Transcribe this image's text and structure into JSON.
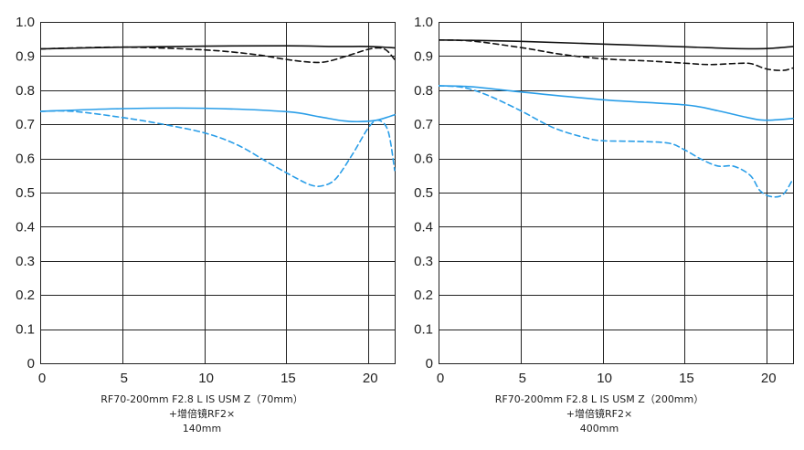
{
  "colors": {
    "black": "#111111",
    "blue": "#2a9ee8"
  },
  "chart_data": [
    {
      "type": "line",
      "caption": [
        "RF70-200mm F2.8 L IS USM Z（70mm）",
        "+增倍镜RF2×",
        "140mm"
      ],
      "xlim": [
        0,
        21.6
      ],
      "ylim": [
        0,
        1.0
      ],
      "xticks": [
        0,
        5,
        10,
        15,
        20
      ],
      "yticks": [
        0,
        0.1,
        0.2,
        0.3,
        0.4,
        0.5,
        0.6,
        0.7,
        0.8,
        0.9,
        1.0
      ],
      "ytick_labels": [
        "0",
        "0.1",
        "0.2",
        "0.3",
        "0.4",
        "0.5",
        "0.6",
        "0.7",
        "0.8",
        "0.9",
        "1.0"
      ],
      "grid": true,
      "series": [
        {
          "color": "black",
          "dash": false,
          "x": [
            0,
            5,
            10,
            15,
            18,
            20,
            21.6
          ],
          "y": [
            0.921,
            0.926,
            0.929,
            0.93,
            0.928,
            0.928,
            0.924
          ]
        },
        {
          "color": "black",
          "dash": true,
          "x": [
            0,
            5,
            10,
            13,
            15,
            16.5,
            17.5,
            19,
            20.2,
            21,
            21.6
          ],
          "y": [
            0.921,
            0.926,
            0.918,
            0.905,
            0.89,
            0.882,
            0.884,
            0.905,
            0.922,
            0.92,
            0.89
          ]
        },
        {
          "color": "blue",
          "dash": false,
          "x": [
            0,
            5,
            10,
            15,
            17,
            18.5,
            19.5,
            20.5,
            21.6
          ],
          "y": [
            0.738,
            0.746,
            0.747,
            0.737,
            0.722,
            0.71,
            0.708,
            0.712,
            0.728
          ]
        },
        {
          "color": "blue",
          "dash": true,
          "x": [
            0,
            2,
            5,
            7.5,
            10,
            12,
            14,
            15.5,
            16.5,
            17.2,
            18,
            19,
            20,
            20.6,
            21.2,
            21.6
          ],
          "y": [
            0.738,
            0.738,
            0.72,
            0.7,
            0.675,
            0.64,
            0.585,
            0.545,
            0.522,
            0.52,
            0.54,
            0.61,
            0.69,
            0.712,
            0.68,
            0.565
          ]
        }
      ]
    },
    {
      "type": "line",
      "caption": [
        "RF70-200mm F2.8 L IS USM Z（200mm）",
        "+增倍镜RF2×",
        "400mm"
      ],
      "xlim": [
        0,
        21.6
      ],
      "ylim": [
        0,
        1.0
      ],
      "xticks": [
        0,
        5,
        10,
        15,
        20
      ],
      "yticks": [
        0,
        0.1,
        0.2,
        0.3,
        0.4,
        0.5,
        0.6,
        0.7,
        0.8,
        0.9,
        1.0
      ],
      "ytick_labels": [
        "0",
        "0.1",
        "0.2",
        "0.3",
        "0.4",
        "0.5",
        "0.6",
        "0.7",
        "0.8",
        "0.9",
        "1.0"
      ],
      "grid": true,
      "series": [
        {
          "color": "black",
          "dash": false,
          "x": [
            0,
            2,
            5,
            10,
            15,
            18,
            20,
            21.6
          ],
          "y": [
            0.947,
            0.946,
            0.943,
            0.935,
            0.927,
            0.922,
            0.922,
            0.928
          ]
        },
        {
          "color": "black",
          "dash": true,
          "x": [
            0,
            2,
            5,
            7.5,
            10,
            13,
            15,
            16.5,
            18,
            19,
            20,
            21,
            21.6
          ],
          "y": [
            0.947,
            0.944,
            0.925,
            0.905,
            0.892,
            0.885,
            0.879,
            0.875,
            0.878,
            0.878,
            0.862,
            0.858,
            0.865
          ]
        },
        {
          "color": "blue",
          "dash": false,
          "x": [
            0,
            2,
            5,
            10,
            15,
            17,
            19,
            20,
            21.6
          ],
          "y": [
            0.813,
            0.81,
            0.795,
            0.772,
            0.757,
            0.74,
            0.718,
            0.712,
            0.717
          ]
        },
        {
          "color": "blue",
          "dash": true,
          "x": [
            0,
            1.5,
            3,
            5,
            7,
            9,
            10,
            12,
            14,
            15,
            16,
            17,
            18,
            19,
            19.6,
            20.3,
            21,
            21.6
          ],
          "y": [
            0.813,
            0.808,
            0.785,
            0.74,
            0.69,
            0.66,
            0.652,
            0.65,
            0.645,
            0.625,
            0.598,
            0.578,
            0.577,
            0.55,
            0.505,
            0.488,
            0.495,
            0.54
          ]
        }
      ]
    }
  ]
}
